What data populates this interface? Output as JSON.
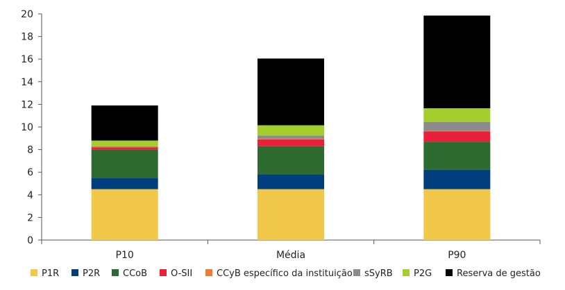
{
  "chart_data": {
    "type": "bar",
    "stacked": true,
    "categories": [
      "P10",
      "Média",
      "P90"
    ],
    "ylim": [
      0,
      20
    ],
    "yticks": [
      0,
      2,
      4,
      6,
      8,
      10,
      12,
      14,
      16,
      18,
      20
    ],
    "legend_position": "bottom",
    "grid": false,
    "series": [
      {
        "name": "P1R",
        "color": "#F2C84B",
        "values": [
          4.5,
          4.5,
          4.5
        ]
      },
      {
        "name": "P2R",
        "color": "#003E7E",
        "values": [
          1.0,
          1.3,
          1.7
        ]
      },
      {
        "name": "CCoB",
        "color": "#2E6B30",
        "values": [
          2.5,
          2.5,
          2.5
        ]
      },
      {
        "name": "O-SII",
        "color": "#E8203A",
        "values": [
          0.2,
          0.6,
          0.9
        ]
      },
      {
        "name": "CCyB específico da instituição",
        "color": "#F47C30",
        "values": [
          0.05,
          0.05,
          0.05
        ]
      },
      {
        "name": "sSyRB",
        "color": "#8C8C8C",
        "values": [
          0.05,
          0.3,
          0.8
        ]
      },
      {
        "name": "P2G",
        "color": "#A3CE2C",
        "values": [
          0.5,
          0.9,
          1.2
        ]
      },
      {
        "name": "Reserva de gestão",
        "color": "#000000",
        "values": [
          3.1,
          5.9,
          8.2
        ]
      }
    ]
  }
}
